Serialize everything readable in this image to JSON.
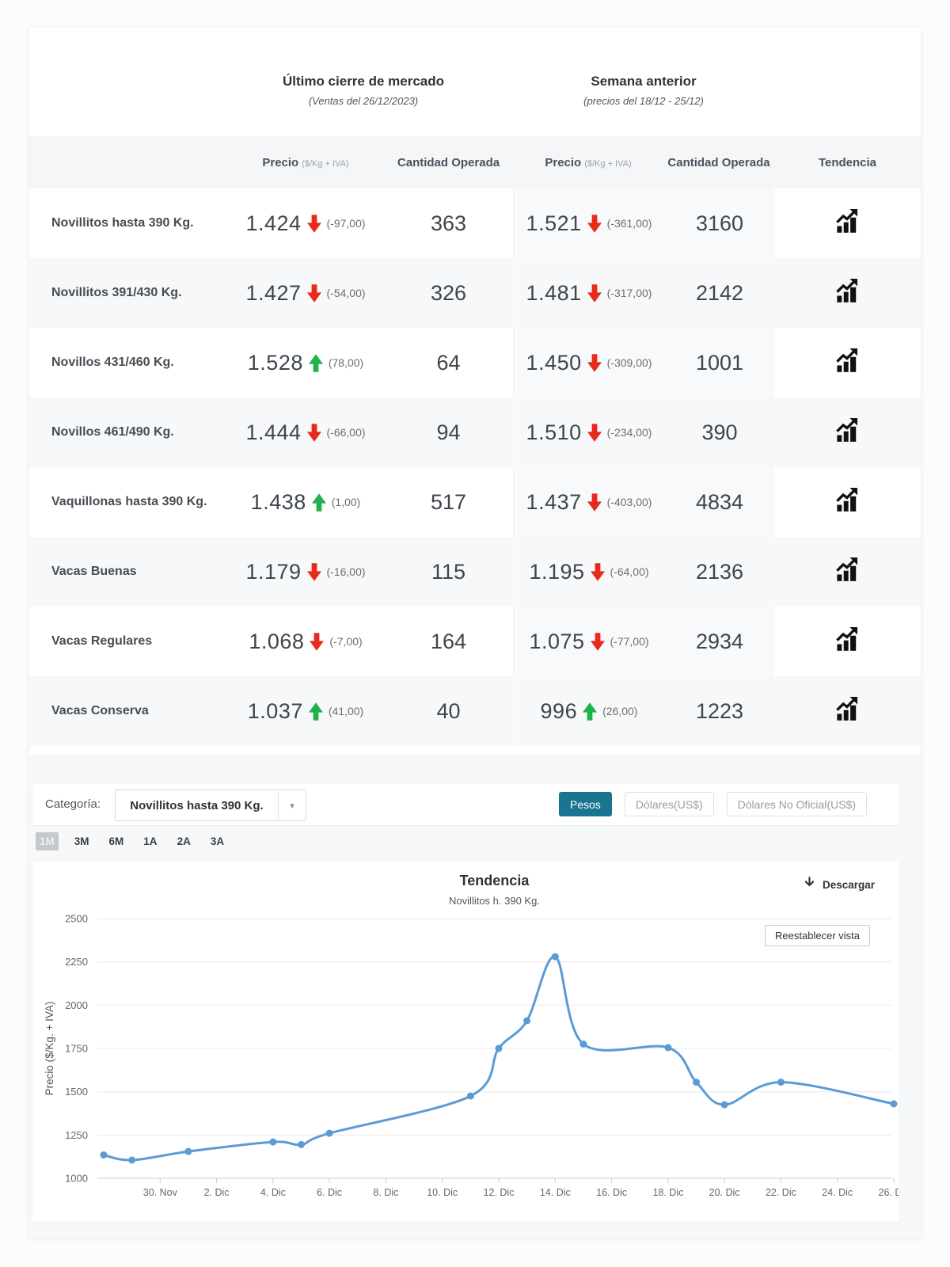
{
  "market_summary": {
    "last_close": {
      "title": "Último cierre de mercado",
      "subtitle": "(Ventas del 26/12/2023)"
    },
    "previous_week": {
      "title": "Semana anterior",
      "subtitle": "(precios del 18/12 - 25/12)"
    }
  },
  "table": {
    "headers": {
      "price_label": "Precio",
      "price_unit": "($/Kg + IVA)",
      "quantity": "Cantidad Operada",
      "trend": "Tendencia"
    },
    "rows": [
      {
        "label": "Novillitos hasta 390 Kg.",
        "last": {
          "price": "1.424",
          "direction": "down",
          "change": "(-97,00)",
          "qty": "363"
        },
        "prev": {
          "price": "1.521",
          "direction": "down",
          "change": "(-361,00)",
          "qty": "3160"
        }
      },
      {
        "label": "Novillitos 391/430 Kg.",
        "last": {
          "price": "1.427",
          "direction": "down",
          "change": "(-54,00)",
          "qty": "326"
        },
        "prev": {
          "price": "1.481",
          "direction": "down",
          "change": "(-317,00)",
          "qty": "2142"
        }
      },
      {
        "label": "Novillos 431/460 Kg.",
        "last": {
          "price": "1.528",
          "direction": "up",
          "change": "(78,00)",
          "qty": "64"
        },
        "prev": {
          "price": "1.450",
          "direction": "down",
          "change": "(-309,00)",
          "qty": "1001"
        }
      },
      {
        "label": "Novillos 461/490 Kg.",
        "last": {
          "price": "1.444",
          "direction": "down",
          "change": "(-66,00)",
          "qty": "94"
        },
        "prev": {
          "price": "1.510",
          "direction": "down",
          "change": "(-234,00)",
          "qty": "390"
        }
      },
      {
        "label": "Vaquillonas hasta 390 Kg.",
        "last": {
          "price": "1.438",
          "direction": "up",
          "change": "(1,00)",
          "qty": "517"
        },
        "prev": {
          "price": "1.437",
          "direction": "down",
          "change": "(-403,00)",
          "qty": "4834"
        }
      },
      {
        "label": "Vacas Buenas",
        "last": {
          "price": "1.179",
          "direction": "down",
          "change": "(-16,00)",
          "qty": "115"
        },
        "prev": {
          "price": "1.195",
          "direction": "down",
          "change": "(-64,00)",
          "qty": "2136"
        }
      },
      {
        "label": "Vacas Regulares",
        "last": {
          "price": "1.068",
          "direction": "down",
          "change": "(-7,00)",
          "qty": "164"
        },
        "prev": {
          "price": "1.075",
          "direction": "down",
          "change": "(-77,00)",
          "qty": "2934"
        }
      },
      {
        "label": "Vacas Conserva",
        "last": {
          "price": "1.037",
          "direction": "up",
          "change": "(41,00)",
          "qty": "40"
        },
        "prev": {
          "price": "996",
          "direction": "up",
          "change": "(26,00)",
          "qty": "1223"
        }
      }
    ]
  },
  "controls": {
    "category_label": "Categoría:",
    "category_value": "Novillitos hasta 390 Kg.",
    "currencies": [
      {
        "label": "Pesos",
        "active": true
      },
      {
        "label": "Dólares(US$)",
        "active": false
      },
      {
        "label": "Dólares No Oficial(US$)",
        "active": false
      }
    ],
    "ranges": [
      {
        "label": "1M",
        "active": true
      },
      {
        "label": "3M",
        "active": false
      },
      {
        "label": "6M",
        "active": false
      },
      {
        "label": "1A",
        "active": false
      },
      {
        "label": "2A",
        "active": false
      },
      {
        "label": "3A",
        "active": false
      }
    ]
  },
  "chart_controls": {
    "download_label": "Descargar",
    "reset_label": "Reestablecer vista"
  },
  "chart_data": {
    "type": "line",
    "title": "Tendencia",
    "subtitle": "Novillitos h. 390 Kg.",
    "ylabel": "Precio ($/Kg. + IVA)",
    "ylim": [
      1000,
      2500
    ],
    "yticks": [
      1000,
      1250,
      1500,
      1750,
      2000,
      2250,
      2500
    ],
    "xticks": [
      {
        "label": "30. Nov",
        "day": 2
      },
      {
        "label": "2. Dic",
        "day": 4
      },
      {
        "label": "4. Dic",
        "day": 6
      },
      {
        "label": "6. Dic",
        "day": 8
      },
      {
        "label": "8. Dic",
        "day": 10
      },
      {
        "label": "10. Dic",
        "day": 12
      },
      {
        "label": "12. Dic",
        "day": 14
      },
      {
        "label": "14. Dic",
        "day": 16
      },
      {
        "label": "16. Dic",
        "day": 18
      },
      {
        "label": "18. Dic",
        "day": 20
      },
      {
        "label": "20. Dic",
        "day": 22
      },
      {
        "label": "22. Dic",
        "day": 24
      },
      {
        "label": "24. Dic",
        "day": 26
      },
      {
        "label": "26. Dic",
        "day": 28
      }
    ],
    "grid": true,
    "legend": "none",
    "line_color": "#5b9bd5",
    "points": [
      {
        "date": "28 Nov",
        "day": 0,
        "value": 1135
      },
      {
        "date": "29 Nov",
        "day": 1,
        "value": 1105
      },
      {
        "date": "1 Dic",
        "day": 3,
        "value": 1155
      },
      {
        "date": "4 Dic",
        "day": 6,
        "value": 1210
      },
      {
        "date": "5 Dic",
        "day": 7,
        "value": 1195
      },
      {
        "date": "6 Dic",
        "day": 8,
        "value": 1260
      },
      {
        "date": "11 Dic",
        "day": 13,
        "value": 1475
      },
      {
        "date": "12 Dic",
        "day": 14,
        "value": 1750
      },
      {
        "date": "13 Dic",
        "day": 15,
        "value": 1910
      },
      {
        "date": "14 Dic",
        "day": 16,
        "value": 2280
      },
      {
        "date": "15 Dic",
        "day": 17,
        "value": 1775
      },
      {
        "date": "18 Dic",
        "day": 20,
        "value": 1755
      },
      {
        "date": "19 Dic",
        "day": 21,
        "value": 1555
      },
      {
        "date": "20 Dic",
        "day": 22,
        "value": 1425
      },
      {
        "date": "22 Dic",
        "day": 24,
        "value": 1555
      },
      {
        "date": "26 Dic",
        "day": 28,
        "value": 1430
      }
    ]
  }
}
